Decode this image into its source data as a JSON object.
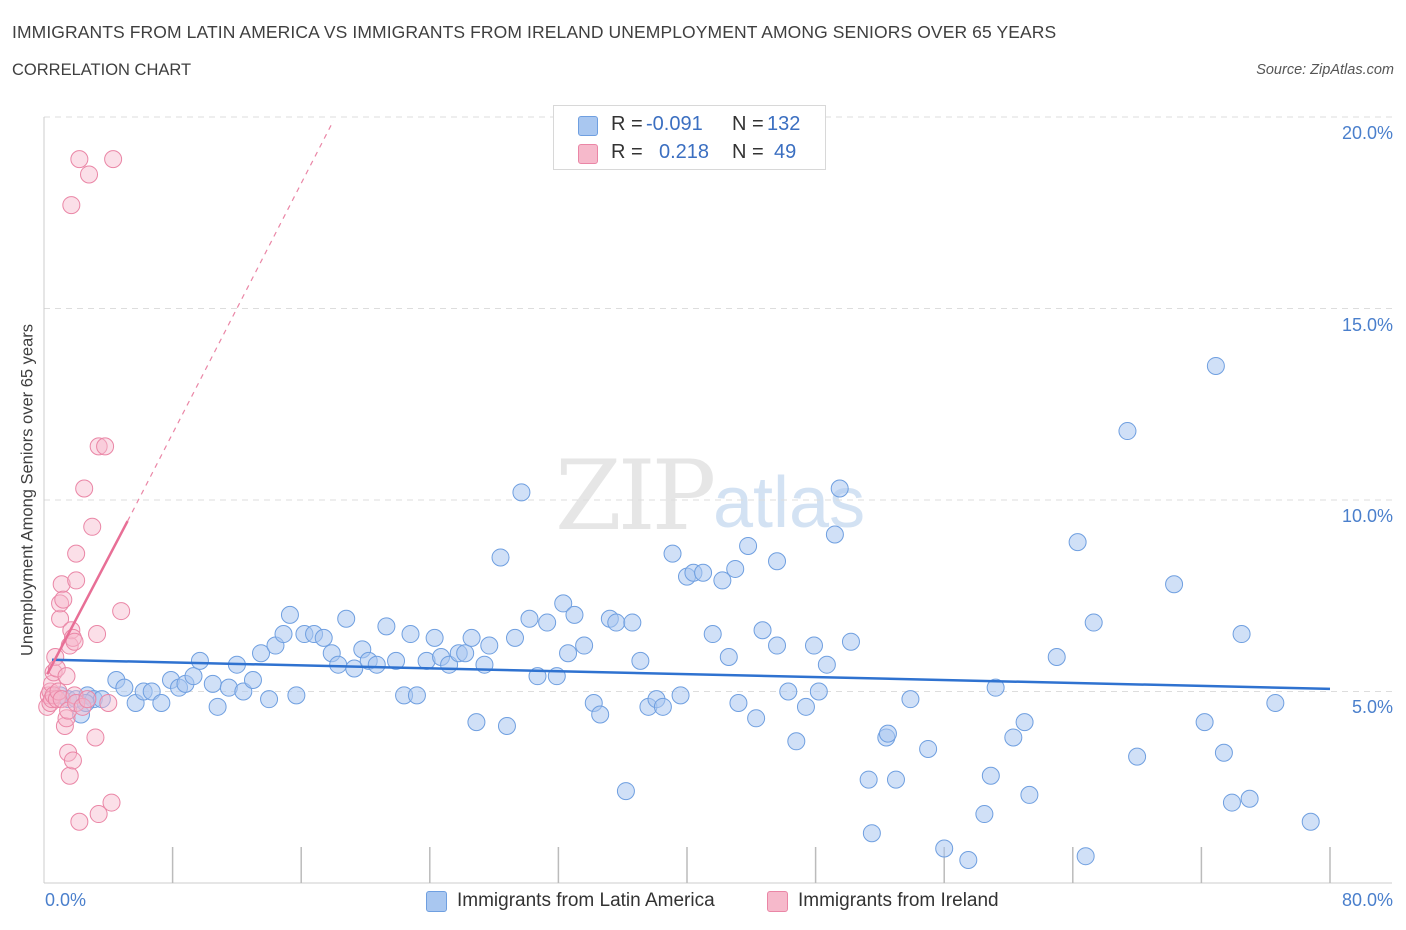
{
  "header": {
    "title": "IMMIGRANTS FROM LATIN AMERICA VS IMMIGRANTS FROM IRELAND UNEMPLOYMENT AMONG SENIORS OVER 65 YEARS",
    "subtitle": "CORRELATION CHART",
    "source": "Source: ZipAtlas.com"
  },
  "watermark": {
    "zip": "ZIP",
    "atlas": "atlas"
  },
  "legend": {
    "rows": [
      {
        "r_label": "R =",
        "r_value": "-0.091",
        "n_label": "N =",
        "n_value": "132",
        "color": "#a9c7f0"
      },
      {
        "r_label": "R =",
        "r_value": "0.218",
        "n_label": "N =",
        "n_value": "49",
        "color": "#f6b9cb"
      }
    ]
  },
  "colors": {
    "blue_fill": "#a9c7f0",
    "blue_stroke": "#6f9fe0",
    "blue_line": "#2f72d0",
    "pink_fill": "#f6b9cb",
    "pink_stroke": "#ea86a6",
    "pink_line": "#e86f96",
    "grid": "#dddddd",
    "tick_label": "#4a7fcc"
  },
  "chart_data": {
    "type": "scatter",
    "title": "IMMIGRANTS FROM LATIN AMERICA VS IMMIGRANTS FROM IRELAND UNEMPLOYMENT AMONG SENIORS OVER 65 YEARS",
    "xlabel": "",
    "ylabel": "Unemployment Among Seniors over 65 years",
    "xlim": [
      0,
      80
    ],
    "ylim": [
      0,
      20
    ],
    "x_tick_labels": [
      "0.0%",
      "80.0%"
    ],
    "y_ticks": [
      5,
      10,
      15,
      20
    ],
    "y_tick_labels": [
      "5.0%",
      "10.0%",
      "15.0%",
      "20.0%"
    ],
    "grid": true,
    "legend_position": "bottom",
    "series": [
      {
        "name": "Immigrants from Latin America",
        "R": -0.091,
        "N": 132,
        "trend": {
          "x": [
            0.5,
            80
          ],
          "y": [
            5.83,
            5.07
          ]
        },
        "points": [
          [
            1.0,
            4.9
          ],
          [
            1.5,
            4.8
          ],
          [
            2.0,
            4.8
          ],
          [
            2.3,
            4.4
          ],
          [
            2.7,
            4.9
          ],
          [
            3.1,
            4.8
          ],
          [
            3.6,
            4.8
          ],
          [
            4.5,
            5.3
          ],
          [
            5.0,
            5.1
          ],
          [
            5.7,
            4.7
          ],
          [
            6.2,
            5.0
          ],
          [
            6.7,
            5.0
          ],
          [
            7.3,
            4.7
          ],
          [
            7.9,
            5.3
          ],
          [
            8.4,
            5.1
          ],
          [
            8.8,
            5.2
          ],
          [
            9.3,
            5.4
          ],
          [
            9.7,
            5.8
          ],
          [
            10.5,
            5.2
          ],
          [
            10.8,
            4.6
          ],
          [
            11.5,
            5.1
          ],
          [
            12.0,
            5.7
          ],
          [
            12.4,
            5.0
          ],
          [
            13.0,
            5.3
          ],
          [
            13.5,
            6.0
          ],
          [
            14.0,
            4.8
          ],
          [
            14.4,
            6.2
          ],
          [
            14.9,
            6.5
          ],
          [
            15.3,
            7.0
          ],
          [
            15.7,
            4.9
          ],
          [
            16.2,
            6.5
          ],
          [
            16.8,
            6.5
          ],
          [
            17.4,
            6.4
          ],
          [
            17.9,
            6.0
          ],
          [
            18.3,
            5.7
          ],
          [
            18.8,
            6.9
          ],
          [
            19.3,
            5.6
          ],
          [
            19.8,
            6.1
          ],
          [
            20.2,
            5.8
          ],
          [
            20.7,
            5.7
          ],
          [
            21.3,
            6.7
          ],
          [
            21.9,
            5.8
          ],
          [
            22.4,
            4.9
          ],
          [
            22.8,
            6.5
          ],
          [
            23.2,
            4.9
          ],
          [
            23.8,
            5.8
          ],
          [
            24.3,
            6.4
          ],
          [
            24.7,
            5.9
          ],
          [
            25.2,
            5.7
          ],
          [
            25.8,
            6.0
          ],
          [
            26.2,
            6.0
          ],
          [
            26.6,
            6.4
          ],
          [
            26.9,
            4.2
          ],
          [
            27.4,
            5.7
          ],
          [
            27.7,
            6.2
          ],
          [
            28.4,
            8.5
          ],
          [
            28.8,
            4.1
          ],
          [
            29.3,
            6.4
          ],
          [
            29.7,
            10.2
          ],
          [
            30.2,
            6.9
          ],
          [
            30.7,
            5.4
          ],
          [
            31.3,
            6.8
          ],
          [
            31.9,
            5.4
          ],
          [
            32.3,
            7.3
          ],
          [
            32.6,
            6.0
          ],
          [
            33.0,
            7.0
          ],
          [
            33.6,
            6.2
          ],
          [
            34.2,
            4.7
          ],
          [
            34.6,
            4.4
          ],
          [
            35.2,
            6.9
          ],
          [
            35.6,
            6.8
          ],
          [
            36.2,
            2.4
          ],
          [
            36.6,
            6.8
          ],
          [
            37.1,
            5.8
          ],
          [
            37.6,
            4.6
          ],
          [
            38.1,
            4.8
          ],
          [
            38.5,
            4.6
          ],
          [
            39.1,
            8.6
          ],
          [
            39.6,
            4.9
          ],
          [
            40.0,
            8.0
          ],
          [
            40.4,
            8.1
          ],
          [
            41.0,
            8.1
          ],
          [
            41.6,
            6.5
          ],
          [
            42.2,
            7.9
          ],
          [
            42.6,
            5.9
          ],
          [
            43.0,
            8.2
          ],
          [
            43.2,
            4.7
          ],
          [
            43.8,
            8.8
          ],
          [
            44.3,
            4.3
          ],
          [
            44.7,
            6.6
          ],
          [
            45.6,
            8.4
          ],
          [
            45.6,
            6.2
          ],
          [
            46.3,
            5.0
          ],
          [
            46.8,
            3.7
          ],
          [
            47.4,
            4.6
          ],
          [
            47.9,
            6.2
          ],
          [
            48.2,
            5.0
          ],
          [
            48.7,
            5.7
          ],
          [
            49.2,
            9.1
          ],
          [
            49.5,
            10.3
          ],
          [
            50.2,
            6.3
          ],
          [
            51.3,
            2.7
          ],
          [
            51.5,
            1.3
          ],
          [
            52.4,
            3.8
          ],
          [
            52.5,
            3.9
          ],
          [
            53.0,
            2.7
          ],
          [
            53.9,
            4.8
          ],
          [
            55.0,
            3.5
          ],
          [
            56.0,
            0.9
          ],
          [
            57.5,
            0.6
          ],
          [
            58.5,
            1.8
          ],
          [
            58.9,
            2.8
          ],
          [
            59.2,
            5.1
          ],
          [
            60.3,
            3.8
          ],
          [
            61.0,
            4.2
          ],
          [
            61.3,
            2.3
          ],
          [
            63.0,
            5.9
          ],
          [
            64.3,
            8.9
          ],
          [
            64.8,
            0.7
          ],
          [
            65.3,
            6.8
          ],
          [
            67.4,
            11.8
          ],
          [
            68.0,
            3.3
          ],
          [
            70.3,
            7.8
          ],
          [
            72.2,
            4.2
          ],
          [
            72.9,
            13.5
          ],
          [
            73.4,
            3.4
          ],
          [
            73.9,
            2.1
          ],
          [
            74.5,
            6.5
          ],
          [
            75.0,
            2.2
          ],
          [
            76.6,
            4.7
          ],
          [
            78.8,
            1.6
          ],
          [
            2.6,
            4.7
          ]
        ]
      },
      {
        "name": "Immigrants from Ireland",
        "R": 0.218,
        "N": 49,
        "trend": {
          "x": [
            0.2,
            5.2
          ],
          "y": [
            5.45,
            9.45
          ]
        },
        "trend_dashed": {
          "x": [
            5.2,
            18.0
          ],
          "y": [
            9.45,
            19.9
          ]
        },
        "points": [
          [
            0.2,
            4.6
          ],
          [
            0.3,
            4.9
          ],
          [
            0.4,
            5.0
          ],
          [
            0.4,
            4.7
          ],
          [
            0.5,
            5.2
          ],
          [
            0.5,
            4.8
          ],
          [
            0.6,
            5.5
          ],
          [
            0.6,
            4.9
          ],
          [
            0.7,
            5.9
          ],
          [
            0.8,
            4.8
          ],
          [
            0.8,
            5.6
          ],
          [
            0.9,
            5.0
          ],
          [
            1.0,
            6.9
          ],
          [
            1.0,
            7.3
          ],
          [
            1.1,
            7.8
          ],
          [
            1.1,
            4.8
          ],
          [
            1.2,
            7.4
          ],
          [
            1.3,
            4.1
          ],
          [
            1.4,
            5.4
          ],
          [
            1.4,
            4.3
          ],
          [
            1.5,
            4.5
          ],
          [
            1.5,
            3.4
          ],
          [
            1.6,
            2.8
          ],
          [
            1.6,
            6.2
          ],
          [
            1.7,
            17.7
          ],
          [
            1.7,
            6.6
          ],
          [
            1.8,
            3.2
          ],
          [
            1.8,
            6.4
          ],
          [
            1.9,
            6.3
          ],
          [
            1.9,
            4.9
          ],
          [
            2.0,
            4.7
          ],
          [
            2.0,
            7.9
          ],
          [
            2.0,
            8.6
          ],
          [
            2.2,
            18.9
          ],
          [
            2.2,
            1.6
          ],
          [
            2.4,
            4.6
          ],
          [
            2.5,
            10.3
          ],
          [
            2.7,
            4.8
          ],
          [
            2.8,
            18.5
          ],
          [
            3.0,
            9.3
          ],
          [
            3.2,
            3.8
          ],
          [
            3.3,
            6.5
          ],
          [
            3.4,
            11.4
          ],
          [
            3.4,
            1.8
          ],
          [
            3.8,
            11.4
          ],
          [
            4.0,
            4.7
          ],
          [
            4.2,
            2.1
          ],
          [
            4.3,
            18.9
          ],
          [
            4.8,
            7.1
          ]
        ]
      }
    ]
  }
}
